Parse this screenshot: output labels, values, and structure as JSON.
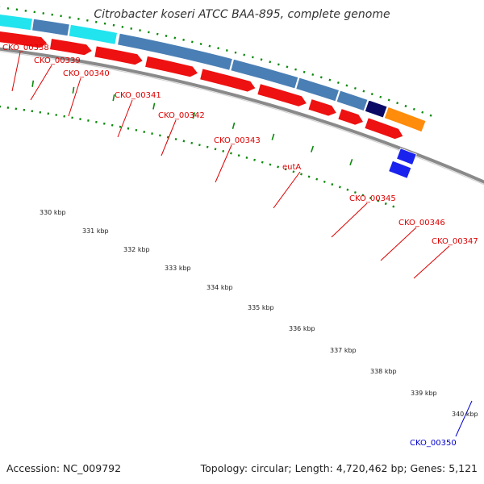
{
  "title": "Citrobacter koseri ATCC BAA-895, complete genome",
  "footer": {
    "accession": "Accession: NC_009792",
    "topology": "Topology: circular; Length: 4,720,462 bp; Genes: 5,121"
  },
  "colors": {
    "cds_forward": "#ee1111",
    "gene_cyan": "#22e4ef",
    "gene_steel": "#4a7fb5",
    "gene_navy": "#0a0a66",
    "gene_orange": "#ff8c0a",
    "cds_blue": "#1a22ee",
    "label_red": "#dd0000",
    "label_blue": "#0000cc",
    "gc_skew_green": "#0b8a0b",
    "backbone": "#8a8a8a"
  },
  "scale_labels": [
    "330 kbp",
    "331 kbp",
    "332 kbp",
    "333 kbp",
    "334 kbp",
    "335 kbp",
    "336 kbp",
    "337 kbp",
    "338 kbp",
    "339 kbp",
    "340 kbp"
  ],
  "gene_labels": [
    {
      "text": "CKO_00338",
      "color": "red"
    },
    {
      "text": "CKO_00339",
      "color": "red"
    },
    {
      "text": "CKO_00340",
      "color": "red"
    },
    {
      "text": "CKO_00341",
      "color": "red"
    },
    {
      "text": "CKO_00342",
      "color": "red"
    },
    {
      "text": "CKO_00343",
      "color": "red"
    },
    {
      "text": "eutA",
      "color": "red"
    },
    {
      "text": "CKO_00345",
      "color": "red"
    },
    {
      "text": "CKO_00346",
      "color": "red"
    },
    {
      "text": "CKO_00347",
      "color": "red"
    },
    {
      "text": "CKO_00350",
      "color": "blue"
    }
  ]
}
